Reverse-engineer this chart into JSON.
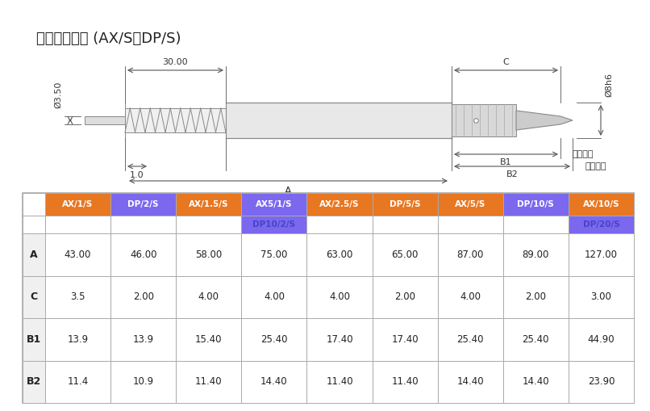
{
  "title": "标准弹簧推动 (AX/S和DP/S)",
  "bg_color": "#f5f5f5",
  "table": {
    "col_headers": [
      "AX/1/S",
      "DP/2/S",
      "AX/1.5/S",
      "AX5/1/S",
      "AX/2.5/S",
      "DP/5/S",
      "AX/5/S",
      "DP/10/S",
      "AX/10/S"
    ],
    "col_headers2": [
      "",
      "",
      "",
      "DP10/2/S",
      "",
      "",
      "",
      "",
      "DP/20/S"
    ],
    "row_headers": [
      "A",
      "C",
      "B1",
      "B2"
    ],
    "data": [
      [
        "43.00",
        "46.00",
        "58.00",
        "75.00",
        "63.00",
        "65.00",
        "87.00",
        "89.00",
        "127.00"
      ],
      [
        "3.5",
        "2.00",
        "4.00",
        "4.00",
        "4.00",
        "2.00",
        "4.00",
        "2.00",
        "3.00"
      ],
      [
        "13.9",
        "13.9",
        "15.40",
        "25.40",
        "17.40",
        "17.40",
        "25.40",
        "25.40",
        "44.90"
      ],
      [
        "11.4",
        "10.9",
        "11.40",
        "14.40",
        "11.40",
        "11.40",
        "14.40",
        "14.40",
        "23.90"
      ]
    ],
    "header_colors": [
      "#E87722",
      "#7B68EE",
      "#E87722",
      "#7B68EE",
      "#E87722",
      "#E87722",
      "#E87722",
      "#7B68EE",
      "#E87722"
    ],
    "header2_colors": [
      "#ffffff",
      "#ffffff",
      "#ffffff",
      "#7B68EE",
      "#ffffff",
      "#ffffff",
      "#ffffff",
      "#ffffff",
      "#7B68EE"
    ],
    "row_header_bold": true
  },
  "diagram": {
    "dim_30": "30.00",
    "dim_1": "1.0",
    "dim_A": "A",
    "dim_B1": "B1",
    "dim_B2": "B2",
    "dim_C": "C",
    "dim_35": "Ø3.50",
    "dim_8h6": "Ø8h6",
    "label_extend": "完全伸展",
    "label_retract": "完全收回"
  }
}
